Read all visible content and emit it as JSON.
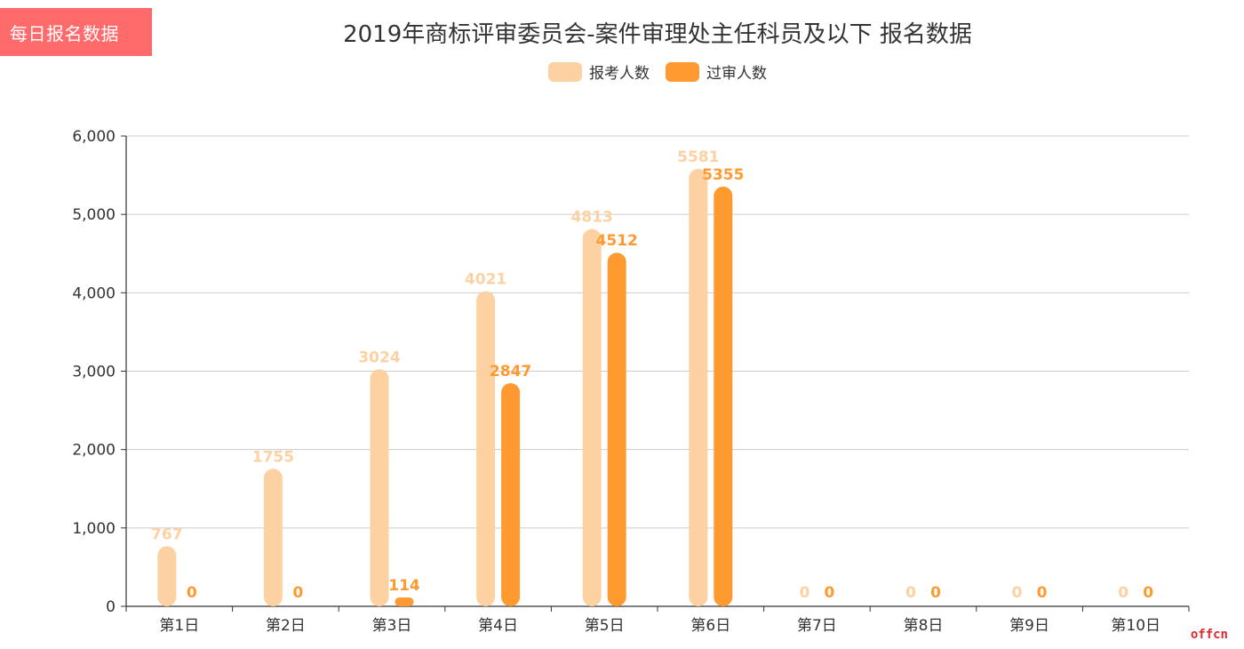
{
  "badge": {
    "label": "每日报名数据"
  },
  "colors": {
    "badge_bg": "#ff6b6b",
    "series1": "#fdd1a1",
    "series2": "#ff9a30",
    "grid": "#cccccc",
    "axis": "#333333"
  },
  "watermark": "offcn",
  "chart_data": {
    "type": "bar",
    "title": "2019年商标评审委员会-案件审理处主任科员及以下 报名数据",
    "xlabel": "",
    "ylabel": "",
    "categories": [
      "第1日",
      "第2日",
      "第3日",
      "第4日",
      "第5日",
      "第6日",
      "第7日",
      "第8日",
      "第9日",
      "第10日"
    ],
    "series": [
      {
        "name": "报考人数",
        "values": [
          767,
          1755,
          3024,
          4021,
          4813,
          5581,
          0,
          0,
          0,
          0
        ]
      },
      {
        "name": "过审人数",
        "values": [
          0,
          0,
          114,
          2847,
          4512,
          5355,
          0,
          0,
          0,
          0
        ]
      }
    ],
    "ylim": [
      0,
      6000
    ],
    "yticks": [
      "0",
      "1,000",
      "2,000",
      "3,000",
      "4,000",
      "5,000",
      "6,000"
    ],
    "grid": true,
    "legend_position": "top-center"
  }
}
